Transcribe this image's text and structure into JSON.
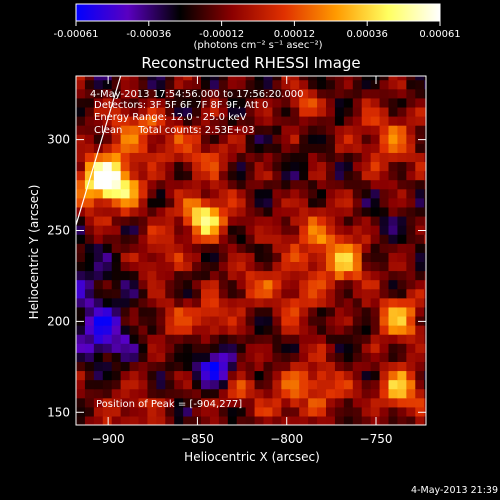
{
  "colorbar": {
    "tick_labels": [
      "-0.00061",
      "-0.00036",
      "-0.00012",
      "0.00012",
      "0.00036",
      "0.00061"
    ],
    "unit_label": "(photons cm⁻² s⁻¹ asec⁻²)",
    "range": [
      -0.00061,
      0.00061
    ],
    "stops": [
      "#0000ff",
      "#5a00c0",
      "#000000",
      "#8b0000",
      "#e03000",
      "#ff9a00",
      "#ffff60",
      "#ffffff"
    ]
  },
  "chart_data": {
    "type": "heatmap",
    "title": "Reconstructed RHESSI Image",
    "xlabel": "Heliocentric X (arcsec)",
    "ylabel": "Heliocentric Y (arcsec)",
    "xlim": [
      -918,
      -722
    ],
    "ylim": [
      143,
      335
    ],
    "x_ticks": [
      -900,
      -850,
      -800,
      -750
    ],
    "y_ticks": [
      150,
      200,
      250,
      300
    ],
    "info_lines": [
      "4-May-2013 17:54:56.000 to 17:56:20.000",
      "Detectors: 3F 5F 6F 7F 8F 9F, Att 0",
      "Energy Range: 12.0 - 25.0 keV",
      "Clean     Total counts: 2.53E+03"
    ],
    "peak_label": "Position of Peak = [-904,277]",
    "peak_position": [
      -904,
      277
    ],
    "limb_line": [
      [
        -918,
        253
      ],
      [
        -893,
        335
      ]
    ],
    "grid": false
  },
  "footer": {
    "timestamp": "4-May-2013 21:39"
  }
}
